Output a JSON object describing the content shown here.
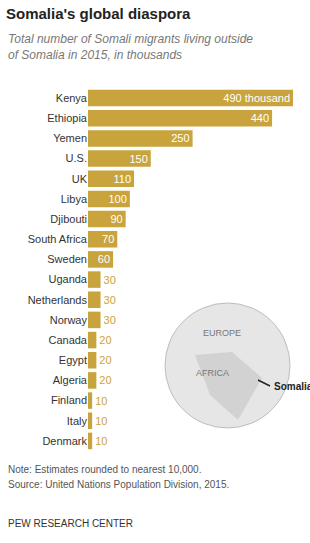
{
  "chart_data": {
    "type": "bar",
    "title": "Somalia's global diaspora",
    "subtitle": "Total number of Somali migrants living outside of Somalia in 2015, in thousands",
    "categories": [
      "Kenya",
      "Ethiopia",
      "Yemen",
      "U.S.",
      "UK",
      "Libya",
      "Djibouti",
      "South Africa",
      "Sweden",
      "Uganda",
      "Netherlands",
      "Norway",
      "Canada",
      "Egypt",
      "Algeria",
      "Finland",
      "Italy",
      "Denmark"
    ],
    "values": [
      490,
      440,
      250,
      150,
      110,
      100,
      90,
      70,
      60,
      30,
      30,
      30,
      20,
      20,
      20,
      10,
      10,
      10
    ],
    "value_labels": [
      "490 thousand",
      "440",
      "250",
      "150",
      "110",
      "100",
      "90",
      "70",
      "60",
      "30",
      "30",
      "30",
      "20",
      "20",
      "20",
      "10",
      "10",
      "10"
    ],
    "color": "#c9a43c",
    "orientation": "horizontal",
    "data_labels": true,
    "tick_labels": "y",
    "grid": false,
    "xlim": [
      0,
      490
    ],
    "map_labels": [
      "EUROPE",
      "AFRICA",
      "Somalia"
    ],
    "note": "Note: Estimates rounded to nearest 10,000.",
    "source": "Source: United Nations Population Division, 2015.",
    "credit": "PEW RESEARCH CENTER"
  }
}
